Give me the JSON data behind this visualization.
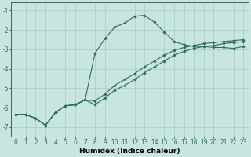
{
  "xlabel": "Humidex (Indice chaleur)",
  "ylabel": "",
  "bg_color": "#c8e6df",
  "line_color": "#2e6b60",
  "grid_color": "#a8ccc6",
  "xlim": [
    -0.5,
    23.5
  ],
  "ylim": [
    -7.5,
    -0.6
  ],
  "yticks": [
    -7,
    -6,
    -5,
    -4,
    -3,
    -2,
    -1
  ],
  "xticks": [
    0,
    1,
    2,
    3,
    4,
    5,
    6,
    7,
    8,
    9,
    10,
    11,
    12,
    13,
    14,
    15,
    16,
    17,
    18,
    19,
    20,
    21,
    22,
    23
  ],
  "line1_x": [
    0,
    1,
    2,
    3,
    4,
    5,
    6,
    7,
    8,
    9,
    10,
    11,
    12,
    13,
    14,
    15,
    16,
    17,
    18,
    19,
    20,
    21,
    22,
    23
  ],
  "line1_y": [
    -6.35,
    -6.35,
    -6.55,
    -6.9,
    -6.25,
    -5.9,
    -5.85,
    -5.6,
    -3.2,
    -2.45,
    -1.85,
    -1.65,
    -1.3,
    -1.25,
    -1.6,
    -2.1,
    -2.6,
    -2.75,
    -2.85,
    -2.85,
    -2.9,
    -2.9,
    -2.95,
    -2.85
  ],
  "line2_x": [
    0,
    1,
    2,
    3,
    4,
    5,
    6,
    7,
    8,
    9,
    10,
    11,
    12,
    13,
    14,
    15,
    16,
    17,
    18,
    19,
    20,
    21,
    22,
    23
  ],
  "line2_y": [
    -6.35,
    -6.35,
    -6.55,
    -6.9,
    -6.25,
    -5.9,
    -5.85,
    -5.6,
    -5.85,
    -5.5,
    -5.1,
    -4.85,
    -4.55,
    -4.2,
    -3.9,
    -3.6,
    -3.3,
    -3.1,
    -2.95,
    -2.85,
    -2.8,
    -2.7,
    -2.65,
    -2.6
  ],
  "line3_x": [
    0,
    1,
    2,
    3,
    4,
    5,
    6,
    7,
    8,
    9,
    10,
    11,
    12,
    13,
    14,
    15,
    16,
    17,
    18,
    19,
    20,
    21,
    22,
    23
  ],
  "line3_y": [
    -6.35,
    -6.35,
    -6.55,
    -6.9,
    -6.25,
    -5.9,
    -5.85,
    -5.6,
    -5.65,
    -5.3,
    -4.85,
    -4.55,
    -4.25,
    -3.9,
    -3.6,
    -3.3,
    -3.05,
    -2.9,
    -2.8,
    -2.7,
    -2.65,
    -2.6,
    -2.55,
    -2.5
  ],
  "title_fontsize": 7,
  "label_fontsize": 6.5,
  "tick_fontsize": 5.5
}
